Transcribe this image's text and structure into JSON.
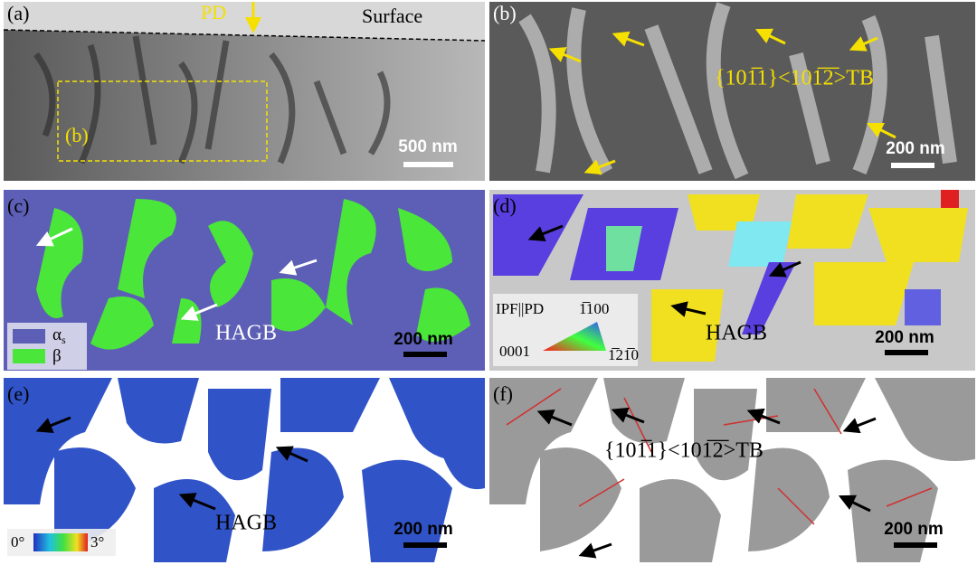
{
  "panels": [
    {
      "label": "(a)",
      "direction": "PD",
      "surface": "Surface",
      "inset_label": "(b)",
      "scale": "500 nm"
    },
    {
      "label": "(b)",
      "annotation": "{101̅1}<101̅2̅>TB",
      "scale": "200 nm"
    },
    {
      "label": "(c)",
      "legend": [
        {
          "symbol": "α",
          "subscript": "s"
        },
        {
          "symbol": "β"
        }
      ],
      "annotation": "HAGB",
      "scale": "200 nm"
    },
    {
      "label": "(d)",
      "legend_title": "IPF||PD",
      "corners": [
        "1̅100",
        "0001",
        "1̅21̅0"
      ],
      "annotation": "HAGB",
      "scale": "200 nm"
    },
    {
      "label": "(e)",
      "colorbar": [
        "0°",
        "3°"
      ],
      "annotation": "HAGB",
      "scale": "200 nm"
    },
    {
      "label": "(f)",
      "annotation": "{101̅1}<101̅2̅>TB",
      "scale": "200 nm"
    }
  ]
}
